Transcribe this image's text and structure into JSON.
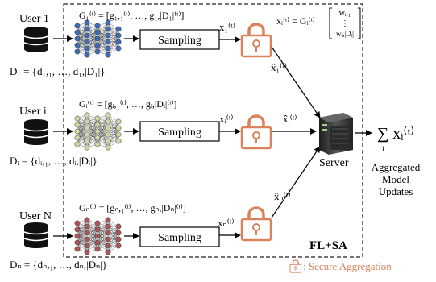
{
  "users": [
    {
      "user_label": "User 1",
      "generator_label": "G₁⁽ᵗ⁾ = [g₁,₁⁽ᵗ⁾, …, g₁,|D₁|⁽ᵗ⁾]",
      "sampling_label": "Sampling",
      "x_label": "x₁⁽ᵗ⁾",
      "xhat_label": "x̂₁⁽ᵗ⁾",
      "dataset_label": "D₁ = {d₁,₁, …, d₁,|D₁|}",
      "net_color": "#3f6cb4"
    },
    {
      "user_label": "User i",
      "generator_label": "Gᵢ⁽ᵗ⁾ = [gᵢ,₁⁽ᵗ⁾, …, gᵢ,|Dᵢ|⁽ᵗ⁾]",
      "sampling_label": "Sampling",
      "x_label": "xᵢ⁽ᵗ⁾",
      "xhat_label": "x̂ᵢ⁽ᵗ⁾",
      "dataset_label": "Dᵢ = {dᵢ,₁, …, dᵢ,|Dᵢ|}",
      "net_color": "#c9d8a4"
    },
    {
      "user_label": "User N",
      "generator_label": "Gₙ⁽ᵗ⁾ = [gₙ,₁⁽ᵗ⁾, …, gₙ,|Dₙ|⁽ᵗ⁾]",
      "sampling_label": "Sampling",
      "x_label": "xₙ⁽ᵗ⁾",
      "xhat_label": "x̂ₙ⁽ᵗ⁾",
      "dataset_label": "Dₙ = {dₙ,₁, …, dₙ,|Dₙ|}",
      "net_color": "#a7565a"
    }
  ],
  "equation": {
    "lhs": "xᵢ⁽ᵗ⁾ = Gᵢ⁽ᵗ⁾",
    "vector_top": "wᵢ,₁",
    "vector_mid": "⋮",
    "vector_bottom": "wᵢ,|Dᵢ|"
  },
  "server_label": "Server",
  "sum_label": "∑ xᵢ⁽ᵗ⁾",
  "sum_index": "i",
  "aggregated_label": [
    "Aggregated",
    "Model",
    "Updates"
  ],
  "frame_label": "FL+SA",
  "legend_label": ": Secure Aggregation",
  "colors": {
    "lock": "#d9825c",
    "legend_text": "#d9825c",
    "db": "#111111"
  }
}
